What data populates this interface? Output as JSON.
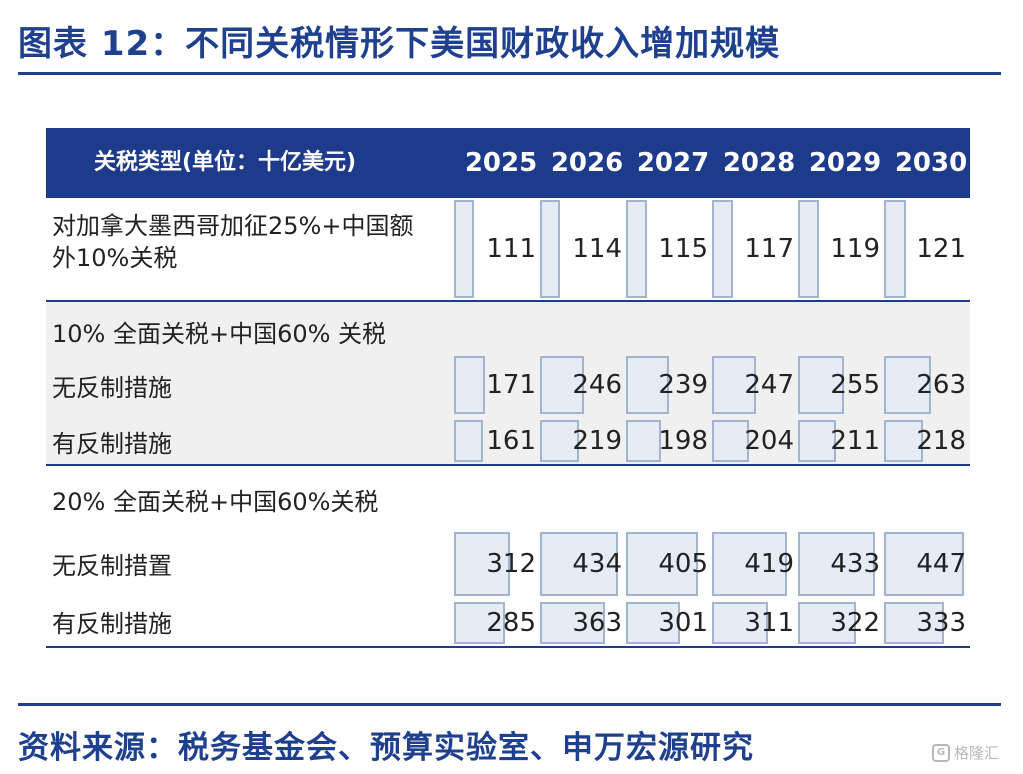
{
  "title": "图表 12：不同关税情形下美国财政收入增加规模",
  "source": "资料来源：税务基金会、预算实验室、申万宏源研究",
  "watermark": "格隆汇",
  "colors": {
    "header_bg": "#1e3a8a",
    "title": "#1f3f8f",
    "bar_fill": "#e6ecf5",
    "bar_border": "#a3b4cf",
    "band": "#f0f0f0"
  },
  "chart_data": {
    "type": "table",
    "header_label": "关税类型(单位：十亿美元)",
    "years": [
      "2025",
      "2026",
      "2027",
      "2028",
      "2029",
      "2030"
    ],
    "groups": [
      {
        "label": "",
        "rows": [
          {
            "label_lines": [
              "对加拿大墨西哥加征25%+中国额",
              "外10%关税"
            ],
            "values": [
              111,
              114,
              115,
              117,
              119,
              121
            ]
          }
        ]
      },
      {
        "label": "10% 全面关税+中国60% 关税",
        "rows": [
          {
            "label_lines": [
              "无反制措施"
            ],
            "values": [
              171,
              246,
              239,
              247,
              255,
              263
            ]
          },
          {
            "label_lines": [
              "有反制措施"
            ],
            "values": [
              161,
              219,
              198,
              204,
              211,
              218
            ]
          }
        ]
      },
      {
        "label": "20% 全面关税+中国60%关税",
        "rows": [
          {
            "label_lines": [
              "无反制措置"
            ],
            "values": [
              312,
              434,
              405,
              419,
              433,
              447
            ]
          },
          {
            "label_lines": [
              "有反制措施"
            ],
            "values": [
              285,
              363,
              301,
              311,
              322,
              333
            ]
          }
        ]
      }
    ],
    "bar_scale_max": 447
  }
}
